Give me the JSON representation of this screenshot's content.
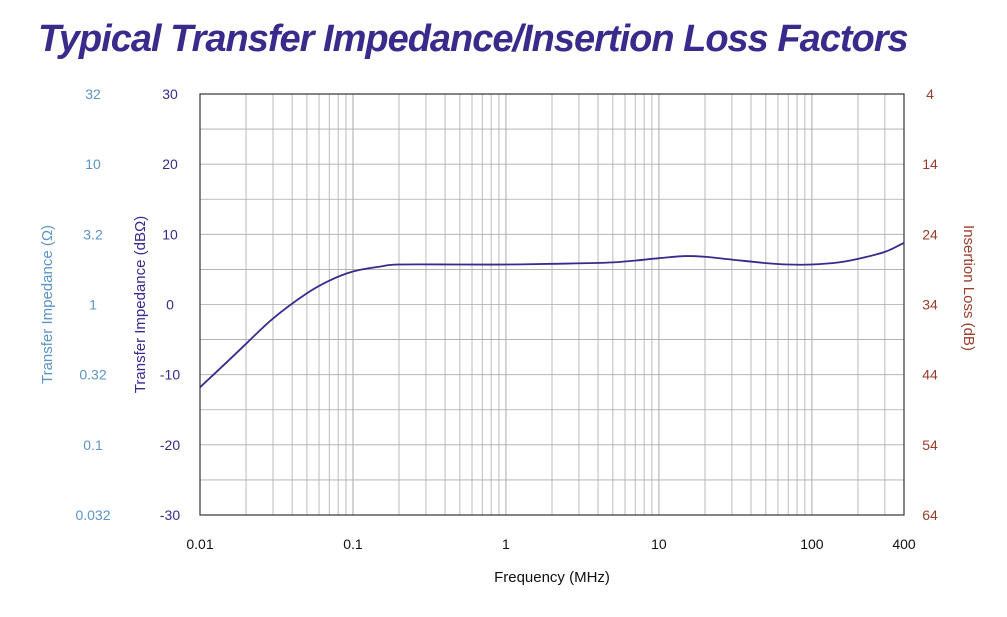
{
  "chart_data": {
    "type": "line",
    "title": "Typical Transfer Impedance/Insertion Loss Factors",
    "xlabel": "Frequency (MHz)",
    "x_scale": "log",
    "xlim": [
      0.01,
      400
    ],
    "x_tick_labels": [
      "0.01",
      "0.1",
      "1",
      "10",
      "100",
      "400"
    ],
    "x_ticks": [
      0.01,
      0.1,
      1,
      10,
      100,
      400
    ],
    "ylabel": "Transfer Impedance (dBΩ)",
    "ylim": [
      -30,
      30
    ],
    "y_ticks": [
      30,
      20,
      10,
      0,
      -10,
      -20,
      -30
    ],
    "y_tick_labels": [
      "30",
      "20",
      "10",
      "0",
      "-10",
      "-20",
      "-30"
    ],
    "y2_left_label": "Transfer Impedance (Ω)",
    "y2_left_tick_labels": [
      "32",
      "10",
      "3.2",
      "1",
      "0.32",
      "0.1",
      "0.032"
    ],
    "y_right_label": "Insertion Loss (dB)",
    "y_right_tick_labels": [
      "4",
      "14",
      "24",
      "34",
      "44",
      "54",
      "64"
    ],
    "grid": true,
    "series": [
      {
        "x": [
          0.01,
          0.015,
          0.02,
          0.03,
          0.05,
          0.07,
          0.1,
          0.15,
          0.2,
          0.5,
          1,
          2,
          5,
          10,
          15,
          20,
          30,
          50,
          70,
          100,
          150,
          200,
          300,
          400
        ],
        "y": [
          -11.8,
          -8.2,
          -5.6,
          -2.0,
          1.6,
          3.4,
          4.7,
          5.4,
          5.7,
          5.7,
          5.7,
          5.8,
          6.0,
          6.6,
          6.9,
          6.8,
          6.4,
          5.9,
          5.7,
          5.7,
          6.0,
          6.5,
          7.5,
          8.8
        ]
      }
    ],
    "colors": {
      "title": "#3a2a8c",
      "line": "#3a2a8c",
      "left_db_ticks": "#3a2a8c",
      "left_ohm_ticks": "#5b94c8",
      "right_ticks": "#9a3c2a",
      "x_ticks": "#111111",
      "grid": "#aaaaaa"
    }
  }
}
